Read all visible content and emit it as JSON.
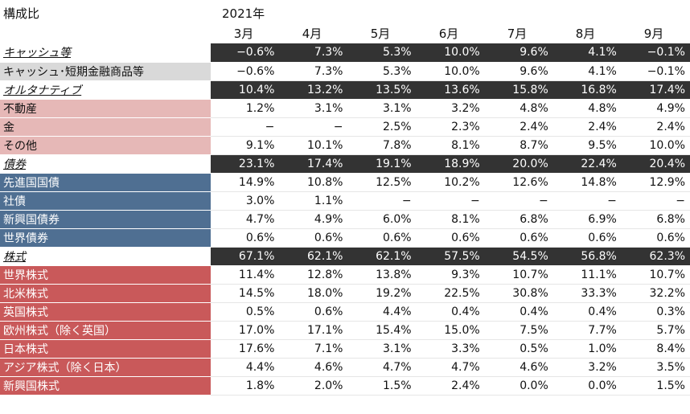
{
  "header": {
    "title": "構成比",
    "year": "2021年",
    "months": [
      "3月",
      "4月",
      "5月",
      "6月",
      "7月",
      "8月",
      "9月"
    ]
  },
  "rows": [
    {
      "label": "キャッシュ等",
      "type": "cat",
      "values": [
        "−0.6%",
        "7.3%",
        "5.3%",
        "10.0%",
        "9.6%",
        "4.1%",
        "−0.1%"
      ]
    },
    {
      "label": "キャッシュ･短期金融商品等",
      "type": "sub",
      "color": "grey",
      "values": [
        "−0.6%",
        "7.3%",
        "5.3%",
        "10.0%",
        "9.6%",
        "4.1%",
        "−0.1%"
      ]
    },
    {
      "label": "オルタナティブ",
      "type": "cat",
      "values": [
        "10.4%",
        "13.2%",
        "13.5%",
        "13.6%",
        "15.8%",
        "16.8%",
        "17.4%"
      ]
    },
    {
      "label": "不動産",
      "type": "sub",
      "color": "pink",
      "values": [
        "1.2%",
        "3.1%",
        "3.1%",
        "3.2%",
        "4.8%",
        "4.8%",
        "4.9%"
      ]
    },
    {
      "label": "金",
      "type": "sub",
      "color": "pink",
      "values": [
        "−",
        "−",
        "2.5%",
        "2.3%",
        "2.4%",
        "2.4%",
        "2.4%"
      ]
    },
    {
      "label": "その他",
      "type": "sub",
      "color": "pink",
      "values": [
        "9.1%",
        "10.1%",
        "7.8%",
        "8.1%",
        "8.7%",
        "9.5%",
        "10.0%"
      ]
    },
    {
      "label": "債券",
      "type": "cat",
      "values": [
        "23.1%",
        "17.4%",
        "19.1%",
        "18.9%",
        "20.0%",
        "22.4%",
        "20.4%"
      ]
    },
    {
      "label": "先進国国債",
      "type": "sub",
      "color": "blue",
      "values": [
        "14.9%",
        "10.8%",
        "12.5%",
        "10.2%",
        "12.6%",
        "14.8%",
        "12.9%"
      ]
    },
    {
      "label": "社債",
      "type": "sub",
      "color": "blue",
      "values": [
        "3.0%",
        "1.1%",
        "−",
        "−",
        "−",
        "−",
        "−"
      ]
    },
    {
      "label": "新興国債券",
      "type": "sub",
      "color": "blue",
      "values": [
        "4.7%",
        "4.9%",
        "6.0%",
        "8.1%",
        "6.8%",
        "6.9%",
        "6.8%"
      ]
    },
    {
      "label": "世界債券",
      "type": "sub",
      "color": "blue",
      "values": [
        "0.6%",
        "0.6%",
        "0.6%",
        "0.6%",
        "0.6%",
        "0.6%",
        "0.6%"
      ]
    },
    {
      "label": "株式",
      "type": "cat",
      "values": [
        "67.1%",
        "62.1%",
        "62.1%",
        "57.5%",
        "54.5%",
        "56.8%",
        "62.3%"
      ]
    },
    {
      "label": "世界株式",
      "type": "sub",
      "color": "red",
      "values": [
        "11.4%",
        "12.8%",
        "13.8%",
        "9.3%",
        "10.7%",
        "11.1%",
        "10.7%"
      ]
    },
    {
      "label": "北米株式",
      "type": "sub",
      "color": "red",
      "values": [
        "14.5%",
        "18.0%",
        "19.2%",
        "22.5%",
        "30.8%",
        "33.3%",
        "32.2%"
      ]
    },
    {
      "label": "英国株式",
      "type": "sub",
      "color": "red",
      "values": [
        "0.5%",
        "0.6%",
        "4.4%",
        "0.4%",
        "0.4%",
        "0.4%",
        "0.3%"
      ]
    },
    {
      "label": "欧州株式（除く英国）",
      "type": "sub",
      "color": "red",
      "values": [
        "17.0%",
        "17.1%",
        "15.4%",
        "15.0%",
        "7.5%",
        "7.7%",
        "5.7%"
      ]
    },
    {
      "label": "日本株式",
      "type": "sub",
      "color": "red",
      "values": [
        "17.6%",
        "7.1%",
        "3.1%",
        "3.3%",
        "0.5%",
        "1.0%",
        "8.4%"
      ]
    },
    {
      "label": "アジア株式（除く日本）",
      "type": "sub",
      "color": "red",
      "values": [
        "4.4%",
        "4.6%",
        "4.7%",
        "4.7%",
        "4.6%",
        "3.2%",
        "3.5%"
      ]
    },
    {
      "label": "新興国株式",
      "type": "sub",
      "color": "red",
      "values": [
        "1.8%",
        "2.0%",
        "1.5%",
        "2.4%",
        "0.0%",
        "0.0%",
        "1.5%"
      ]
    }
  ]
}
